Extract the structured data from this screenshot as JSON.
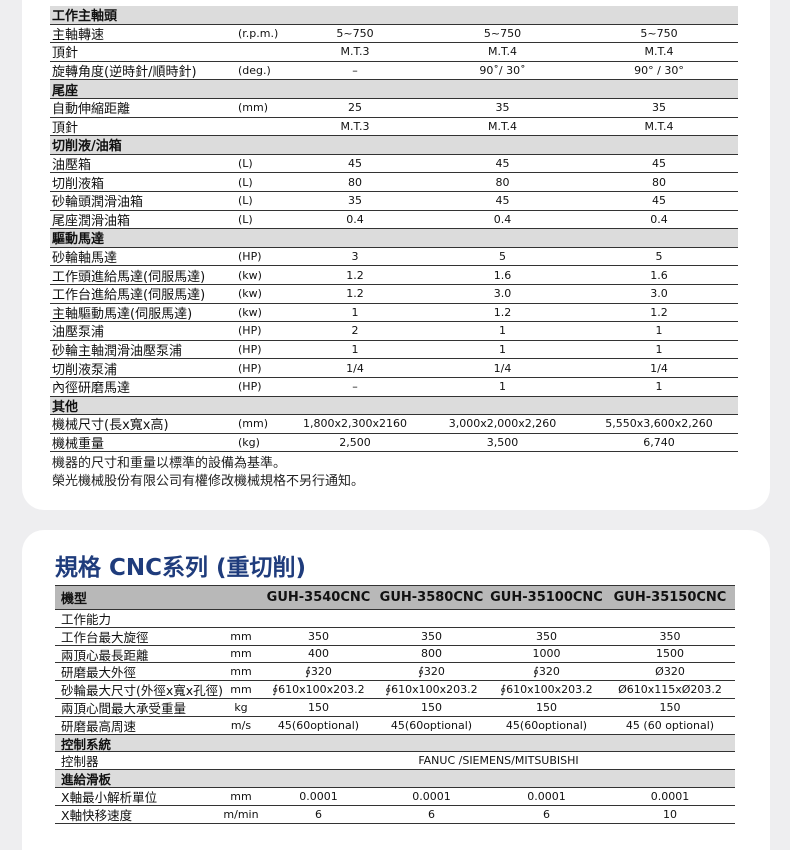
{
  "spec_table_1": {
    "rows": [
      {
        "section": "工作主軸頭"
      },
      {
        "label": "主軸轉速",
        "unit": "(r.p.m.)",
        "values": [
          "5~750",
          "5~750",
          "5~750"
        ]
      },
      {
        "label": "頂針",
        "values": [
          "M.T.3",
          "M.T.4",
          "M.T.4"
        ]
      },
      {
        "label": "旋轉角度(逆時針/順時針)",
        "unit": "(deg.)",
        "values": [
          "–",
          "90˚/ 30˚",
          "90° / 30°"
        ]
      },
      {
        "section": "尾座"
      },
      {
        "label": "自動伸縮距離",
        "unit": "(mm)",
        "values": [
          "25",
          "35",
          "35"
        ]
      },
      {
        "label": "頂針",
        "values": [
          "M.T.3",
          "M.T.4",
          "M.T.4"
        ]
      },
      {
        "section": "切削液/油箱"
      },
      {
        "label": "油壓箱",
        "unit": "(L)",
        "values": [
          "45",
          "45",
          "45"
        ]
      },
      {
        "label": "切削液箱",
        "unit": "(L)",
        "values": [
          "80",
          "80",
          "80"
        ]
      },
      {
        "label": "砂輪頭潤滑油箱",
        "unit": "(L)",
        "values": [
          "35",
          "45",
          "45"
        ]
      },
      {
        "label": "尾座潤滑油箱",
        "unit": "(L)",
        "values": [
          "0.4",
          "0.4",
          "0.4"
        ]
      },
      {
        "section": "驅動馬達"
      },
      {
        "label": "砂輪軸馬達",
        "unit": "(HP)",
        "values": [
          "3",
          "5",
          "5"
        ]
      },
      {
        "label": "工作頭進給馬達(伺服馬達)",
        "unit": "(kw)",
        "values": [
          "1.2",
          "1.6",
          "1.6"
        ]
      },
      {
        "label": "工作台進給馬達(伺服馬達)",
        "unit": "(kw)",
        "values": [
          "1.2",
          "3.0",
          "3.0"
        ]
      },
      {
        "label": "主軸驅動馬達(伺服馬達)",
        "unit": "(kw)",
        "values": [
          "1",
          "1.2",
          "1.2"
        ]
      },
      {
        "label": "油壓泵浦",
        "unit": "(HP)",
        "values": [
          "2",
          "1",
          "1"
        ]
      },
      {
        "label": "砂輪主軸潤滑油壓泵浦",
        "unit": "(HP)",
        "values": [
          "1",
          "1",
          "1"
        ]
      },
      {
        "label": "切削液泵浦",
        "unit": "(HP)",
        "values": [
          "1/4",
          "1/4",
          "1/4"
        ]
      },
      {
        "label": "內徑研磨馬達",
        "unit": "(HP)",
        "values": [
          "–",
          "1",
          "1"
        ]
      },
      {
        "section": "其他"
      },
      {
        "label": "機械尺寸(長x寬x高)",
        "unit": "(mm)",
        "values": [
          "1,800x2,300x2160",
          "3,000x2,000x2,260",
          "5,550x3,600x2,260"
        ]
      },
      {
        "label": "機械重量",
        "unit": "(kg)",
        "values": [
          "2,500",
          "3,500",
          "6,740"
        ]
      }
    ],
    "notes": [
      "機器的尺寸和重量以標準的設備為基準。",
      "榮光機械股份有限公司有權修改機械規格不另行通知。"
    ]
  },
  "spec_table_2": {
    "title": "規格 CNC系列 (重切削)",
    "header": {
      "label": "機型",
      "models": [
        "GUH-3540CNC",
        "GUH-3580CNC",
        "GUH-35100CNC",
        "GUH-35150CNC"
      ]
    },
    "rows": [
      {
        "label": "工作能力"
      },
      {
        "label": "工作台最大旋徑",
        "unit": "mm",
        "values": [
          "350",
          "350",
          "350",
          "350"
        ]
      },
      {
        "label": "兩頂心最長距離",
        "unit": "mm",
        "values": [
          "400",
          "800",
          "1000",
          "1500"
        ]
      },
      {
        "label": "研磨最大外徑",
        "unit": "mm",
        "values": [
          "∮320",
          "∮320",
          "∮320",
          "Ø320"
        ]
      },
      {
        "label": "砂輪最大尺寸(外徑x寬x孔徑)",
        "unit": "mm",
        "values": [
          "∮610x100x203.2",
          "∮610x100x203.2",
          "∮610x100x203.2",
          "Ø610x115xØ203.2"
        ]
      },
      {
        "label": "兩頂心間最大承受重量",
        "unit": "kg",
        "values": [
          "150",
          "150",
          "150",
          "150"
        ]
      },
      {
        "label": "研磨最高周速",
        "unit": "m/s",
        "values": [
          "45(60optional)",
          "45(60optional)",
          "45(60optional)",
          "45 (60 optional)"
        ]
      },
      {
        "section": "控制系統"
      },
      {
        "label": "控制器",
        "span": "FANUC /SIEMENS/MITSUBISHI"
      },
      {
        "section": "進給滑板"
      },
      {
        "label": "X軸最小解析單位",
        "unit": "mm",
        "values": [
          "0.0001",
          "0.0001",
          "0.0001",
          "0.0001"
        ]
      },
      {
        "label": "X軸快移速度",
        "unit": "m/min",
        "values": [
          "6",
          "6",
          "6",
          "10"
        ]
      }
    ]
  }
}
